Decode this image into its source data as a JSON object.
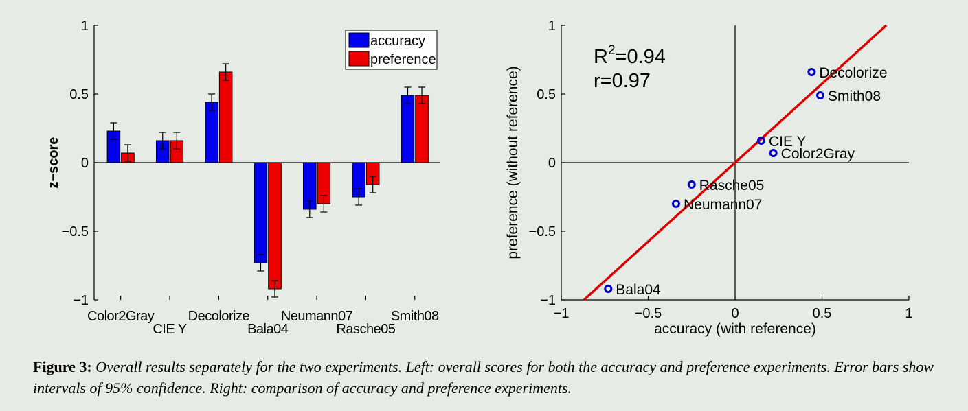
{
  "chart_data": [
    {
      "type": "bar",
      "categories": [
        "Color2Gray",
        "CIE Y",
        "Decolorize",
        "Bala04",
        "Neumann07",
        "Rasche05",
        "Smith08"
      ],
      "series": [
        {
          "name": "accuracy",
          "color": "#0000ee",
          "values": [
            0.23,
            0.16,
            0.44,
            -0.73,
            -0.34,
            -0.25,
            0.49
          ],
          "errors": [
            0.06,
            0.06,
            0.06,
            0.06,
            0.06,
            0.06,
            0.06
          ]
        },
        {
          "name": "preference",
          "color": "#ee0000",
          "values": [
            0.07,
            0.16,
            0.66,
            -0.92,
            -0.3,
            -0.16,
            0.49
          ],
          "errors": [
            0.06,
            0.06,
            0.06,
            0.06,
            0.06,
            0.06,
            0.06
          ]
        }
      ],
      "ylabel": "z−score",
      "ylim": [
        -1,
        1
      ],
      "yticks": [
        "1",
        "0.5",
        "0",
        "−0.5",
        "−1"
      ],
      "legend": "top-right"
    },
    {
      "type": "scatter",
      "points": [
        {
          "label": "Decolorize",
          "x": 0.44,
          "y": 0.66
        },
        {
          "label": "Smith08",
          "x": 0.49,
          "y": 0.49
        },
        {
          "label": "CIE Y",
          "x": 0.15,
          "y": 0.16
        },
        {
          "label": "Color2Gray",
          "x": 0.22,
          "y": 0.07
        },
        {
          "label": "Rasche05",
          "x": -0.25,
          "y": -0.16
        },
        {
          "label": "Neumann07",
          "x": -0.34,
          "y": -0.3
        },
        {
          "label": "Bala04",
          "x": -0.73,
          "y": -0.92
        }
      ],
      "fit_line": {
        "slope": 1.15,
        "intercept": 0.0,
        "color": "#dd0000"
      },
      "annotation": {
        "r2_base": "R",
        "r2_sup": "2",
        "r2_value": "=0.94",
        "r": "r=0.97"
      },
      "xlabel": "accuracy (with reference)",
      "ylabel": "preference (without reference)",
      "xlim": [
        -1,
        1
      ],
      "ylim": [
        -1,
        1
      ],
      "xticks": [
        "−1",
        "−0.5",
        "0",
        "0.5",
        "1"
      ],
      "yticks": [
        "1",
        "0.5",
        "0",
        "−0.5",
        "−1"
      ],
      "point_color": "#0000cc"
    }
  ],
  "caption": {
    "label": "Figure 3:",
    "text": "Overall results separately for the two experiments. Left: overall scores for both the accuracy and preference experiments. Error bars show intervals of 95% confidence. Right: comparison of accuracy and preference experiments."
  }
}
